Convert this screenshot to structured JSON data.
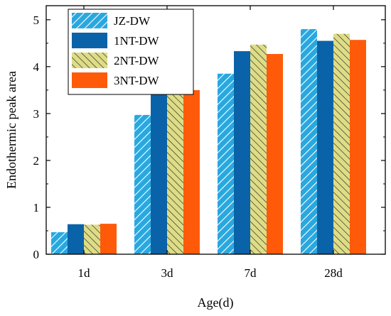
{
  "chart_data": {
    "type": "bar",
    "xlabel": "Age(d)",
    "ylabel": "Endothermic peak area",
    "ylim": [
      0,
      5.3
    ],
    "yticks": [
      0,
      1,
      2,
      3,
      4,
      5
    ],
    "categories": [
      "1d",
      "3d",
      "7d",
      "28d"
    ],
    "series": [
      {
        "name": "JZ-DW",
        "color": "#29a8e0",
        "pattern": "hatch",
        "values": [
          0.47,
          2.97,
          3.85,
          4.8
        ]
      },
      {
        "name": "1NT-DW",
        "color": "#0a63a8",
        "pattern": "solid",
        "values": [
          0.64,
          3.46,
          4.33,
          4.55
        ]
      },
      {
        "name": "2NT-DW",
        "color": "#d8d77e",
        "pattern": "hatch",
        "values": [
          0.63,
          3.48,
          4.47,
          4.7
        ]
      },
      {
        "name": "3NT-DW",
        "color": "#ff5a0a",
        "pattern": "solid",
        "values": [
          0.65,
          3.5,
          4.27,
          4.57
        ]
      }
    ],
    "grid": false,
    "legend_position": "top-left"
  }
}
